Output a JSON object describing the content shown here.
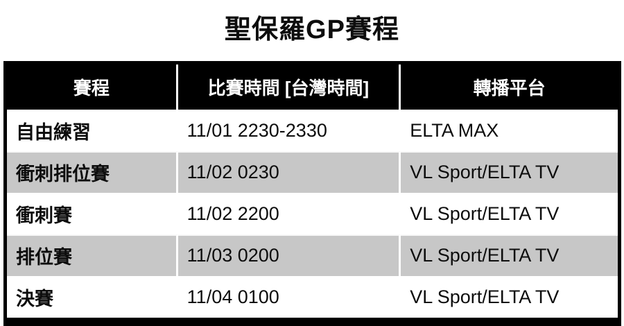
{
  "page": {
    "title": "聖保羅GP賽程"
  },
  "chart_data": {
    "type": "table",
    "title": "聖保羅GP賽程",
    "columns": [
      "賽程",
      "比賽時間 [台灣時間]",
      "轉播平台"
    ],
    "rows": [
      [
        "自由練習",
        "11/01 2230-2330",
        "ELTA MAX"
      ],
      [
        "衝刺排位賽",
        "11/02 0230",
        "VL Sport/ELTA TV"
      ],
      [
        "衝刺賽",
        "11/02 2200",
        "VL Sport/ELTA TV"
      ],
      [
        "排位賽",
        "11/03 0200",
        "VL Sport/ELTA TV"
      ],
      [
        "決賽",
        "11/04 0100",
        "VL Sport/ELTA TV"
      ]
    ],
    "layout_hints": {
      "header_style": "black background, white bold centered text",
      "row_striping": "white / light gray alternating starting with white",
      "gridlines": "white vertical separators between columns, thick black outer border, extra thick bottom border"
    },
    "colors": {
      "header_bg": "#000000",
      "header_text": "#ffffff",
      "row_bg": "#ffffff",
      "row_alt_bg": "#c7c7c7",
      "body_text": "#0d0d0d",
      "outer_border": "#000000",
      "gridline": "#ffffff"
    }
  }
}
